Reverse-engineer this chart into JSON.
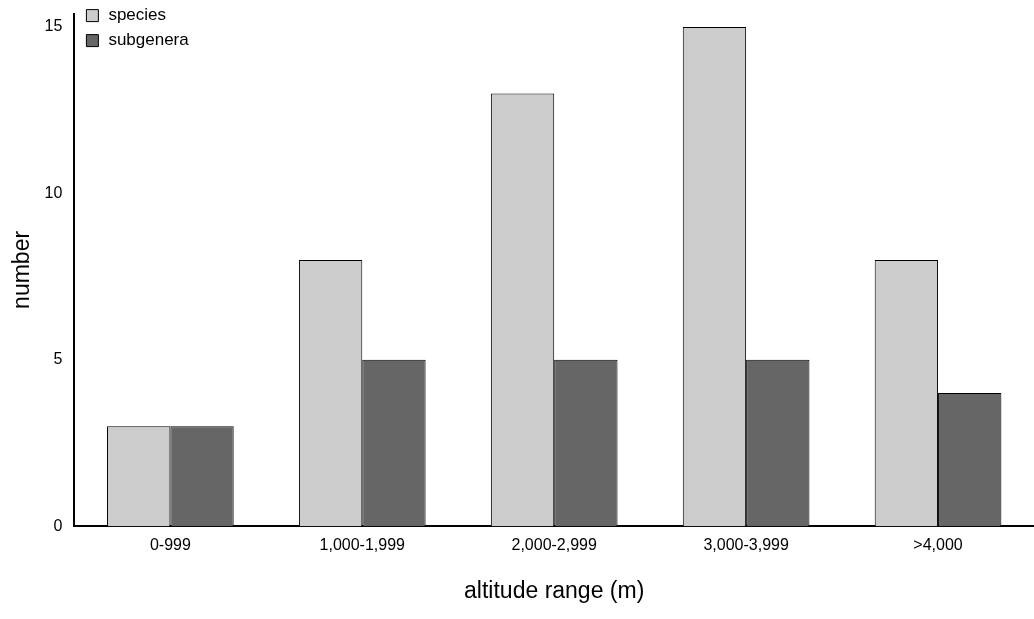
{
  "chart_data": {
    "type": "bar",
    "xlabel": "altitude range (m)",
    "ylabel": "number",
    "categories": [
      "0-999",
      "1,000-1,999",
      "2,000-2,999",
      "3,000-3,999",
      ">4,000"
    ],
    "series": [
      {
        "name": "species",
        "color": "#cccccc",
        "values": [
          3,
          8,
          13,
          15,
          8
        ]
      },
      {
        "name": "subgenera",
        "color": "#666666",
        "values": [
          3,
          5,
          5,
          5,
          4
        ]
      }
    ],
    "ylim": [
      0,
      15.4
    ],
    "yticks": [
      0,
      5,
      10,
      15
    ],
    "grid": false,
    "legend": "top left"
  }
}
